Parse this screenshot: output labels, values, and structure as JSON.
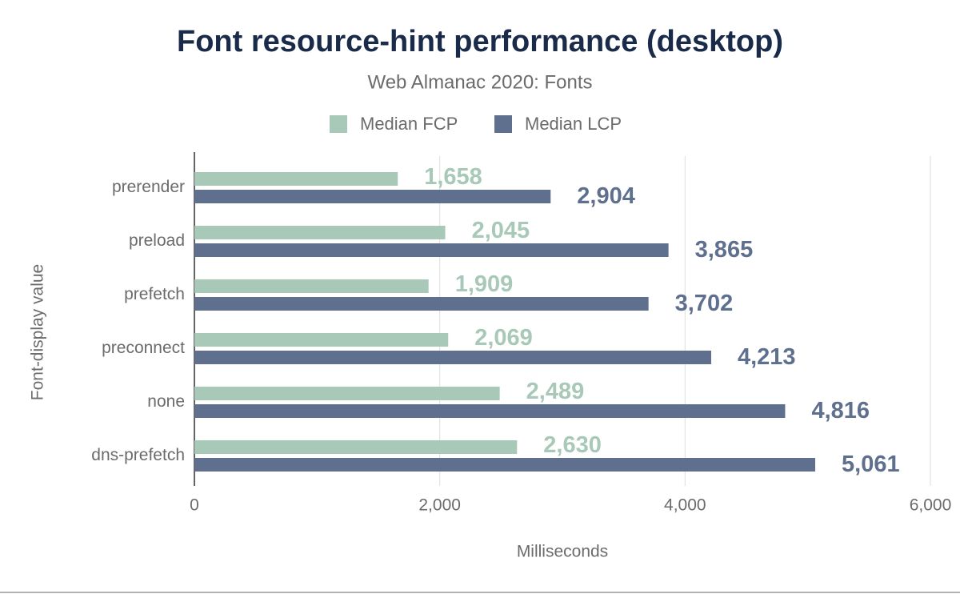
{
  "chart_data": {
    "type": "hbar",
    "title": "Font resource-hint performance (desktop)",
    "subtitle": "Web Almanac 2020: Fonts",
    "x_label": "Milliseconds",
    "y_label": "Font-display value",
    "categories": [
      "prerender",
      "preload",
      "prefetch",
      "preconnect",
      "none",
      "dns-prefetch"
    ],
    "series": [
      {
        "name": "Median FCP",
        "color": "#a8c8b8",
        "values": [
          1658,
          2045,
          1909,
          2069,
          2489,
          2630
        ],
        "value_labels": [
          "1,658",
          "2,045",
          "1,909",
          "2,069",
          "2,489",
          "2,630"
        ]
      },
      {
        "name": "Median LCP",
        "color": "#5f6f8e",
        "values": [
          2904,
          3865,
          3702,
          4213,
          4816,
          5061
        ],
        "value_labels": [
          "2,904",
          "3,865",
          "3,702",
          "4,213",
          "4,816",
          "5,061"
        ]
      }
    ],
    "xlim": [
      0,
      6000
    ],
    "xticks": [
      0,
      {
        "value": 2000,
        "label": "2,000"
      },
      {
        "value": 4000,
        "label": "4,000"
      },
      {
        "value": 6000,
        "label": "6,000"
      }
    ],
    "grid": true,
    "legend": "top"
  }
}
